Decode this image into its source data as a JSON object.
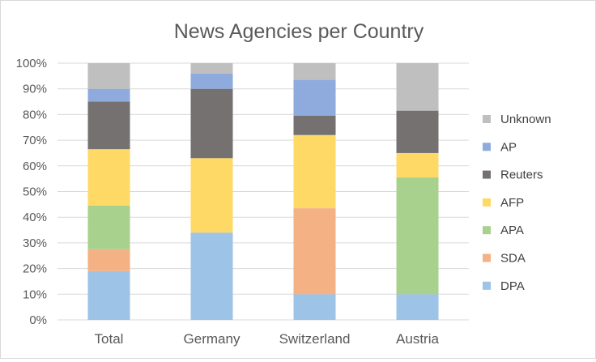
{
  "chart_data": {
    "type": "bar",
    "stacked": true,
    "percent_stacked": true,
    "title": "News Agencies per Country",
    "xlabel": "",
    "ylabel": "",
    "ylim": [
      0,
      100
    ],
    "y_ticks": [
      "0%",
      "10%",
      "20%",
      "30%",
      "40%",
      "50%",
      "60%",
      "70%",
      "80%",
      "90%",
      "100%"
    ],
    "y_tick_values": [
      0,
      10,
      20,
      30,
      40,
      50,
      60,
      70,
      80,
      90,
      100
    ],
    "grid": true,
    "legend_position": "right",
    "categories": [
      "Total",
      "Germany",
      "Switzerland",
      "Austria"
    ],
    "series": [
      {
        "name": "DPA",
        "color": "#9dc3e6",
        "values": [
          19,
          34,
          10,
          10
        ]
      },
      {
        "name": "SDA",
        "color": "#f4b183",
        "values": [
          8.5,
          0,
          33.5,
          0
        ]
      },
      {
        "name": "APA",
        "color": "#a9d18e",
        "values": [
          17,
          0,
          0,
          45.5
        ]
      },
      {
        "name": "AFP",
        "color": "#ffd966",
        "values": [
          22,
          29,
          28.5,
          9.5
        ]
      },
      {
        "name": "Reuters",
        "color": "#767171",
        "values": [
          18.5,
          27,
          7.5,
          16.5
        ]
      },
      {
        "name": "AP",
        "color": "#8faadc",
        "values": [
          5,
          6,
          14,
          0
        ]
      },
      {
        "name": "Unknown",
        "color": "#bfbfbf",
        "values": [
          10,
          4,
          6.5,
          18.5
        ]
      }
    ]
  }
}
